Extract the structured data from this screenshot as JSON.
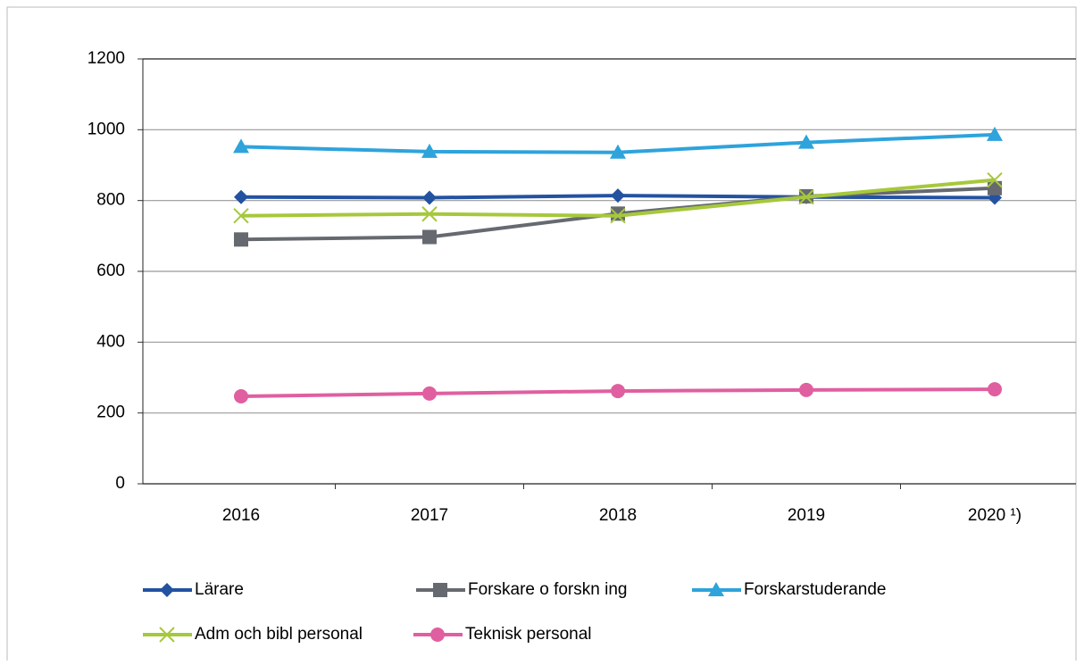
{
  "chart_data": {
    "type": "line",
    "categories": [
      "2016",
      "2017",
      "2018",
      "2019",
      "2020 ¹)"
    ],
    "series": [
      {
        "name": "Lärare",
        "color": "#2352a0",
        "marker": "diamond",
        "values": [
          810,
          808,
          814,
          810,
          808
        ]
      },
      {
        "name": "Forskare o forskn ing",
        "color": "#666a70",
        "marker": "square",
        "values": [
          690,
          697,
          763,
          812,
          835
        ]
      },
      {
        "name": "Forskarstuderande",
        "color": "#2ea3dc",
        "marker": "triangle",
        "values": [
          952,
          938,
          936,
          964,
          986
        ]
      },
      {
        "name": "Adm och bibl personal",
        "color": "#a6c83c",
        "marker": "x",
        "values": [
          757,
          762,
          757,
          810,
          858
        ]
      },
      {
        "name": "Teknisk personal",
        "color": "#e05fa0",
        "marker": "circle",
        "values": [
          247,
          255,
          262,
          265,
          267
        ]
      }
    ],
    "ylim": [
      0,
      1200
    ],
    "yticks": [
      0,
      200,
      400,
      600,
      800,
      1000,
      1200
    ],
    "grid": true,
    "legend": "bottom"
  }
}
